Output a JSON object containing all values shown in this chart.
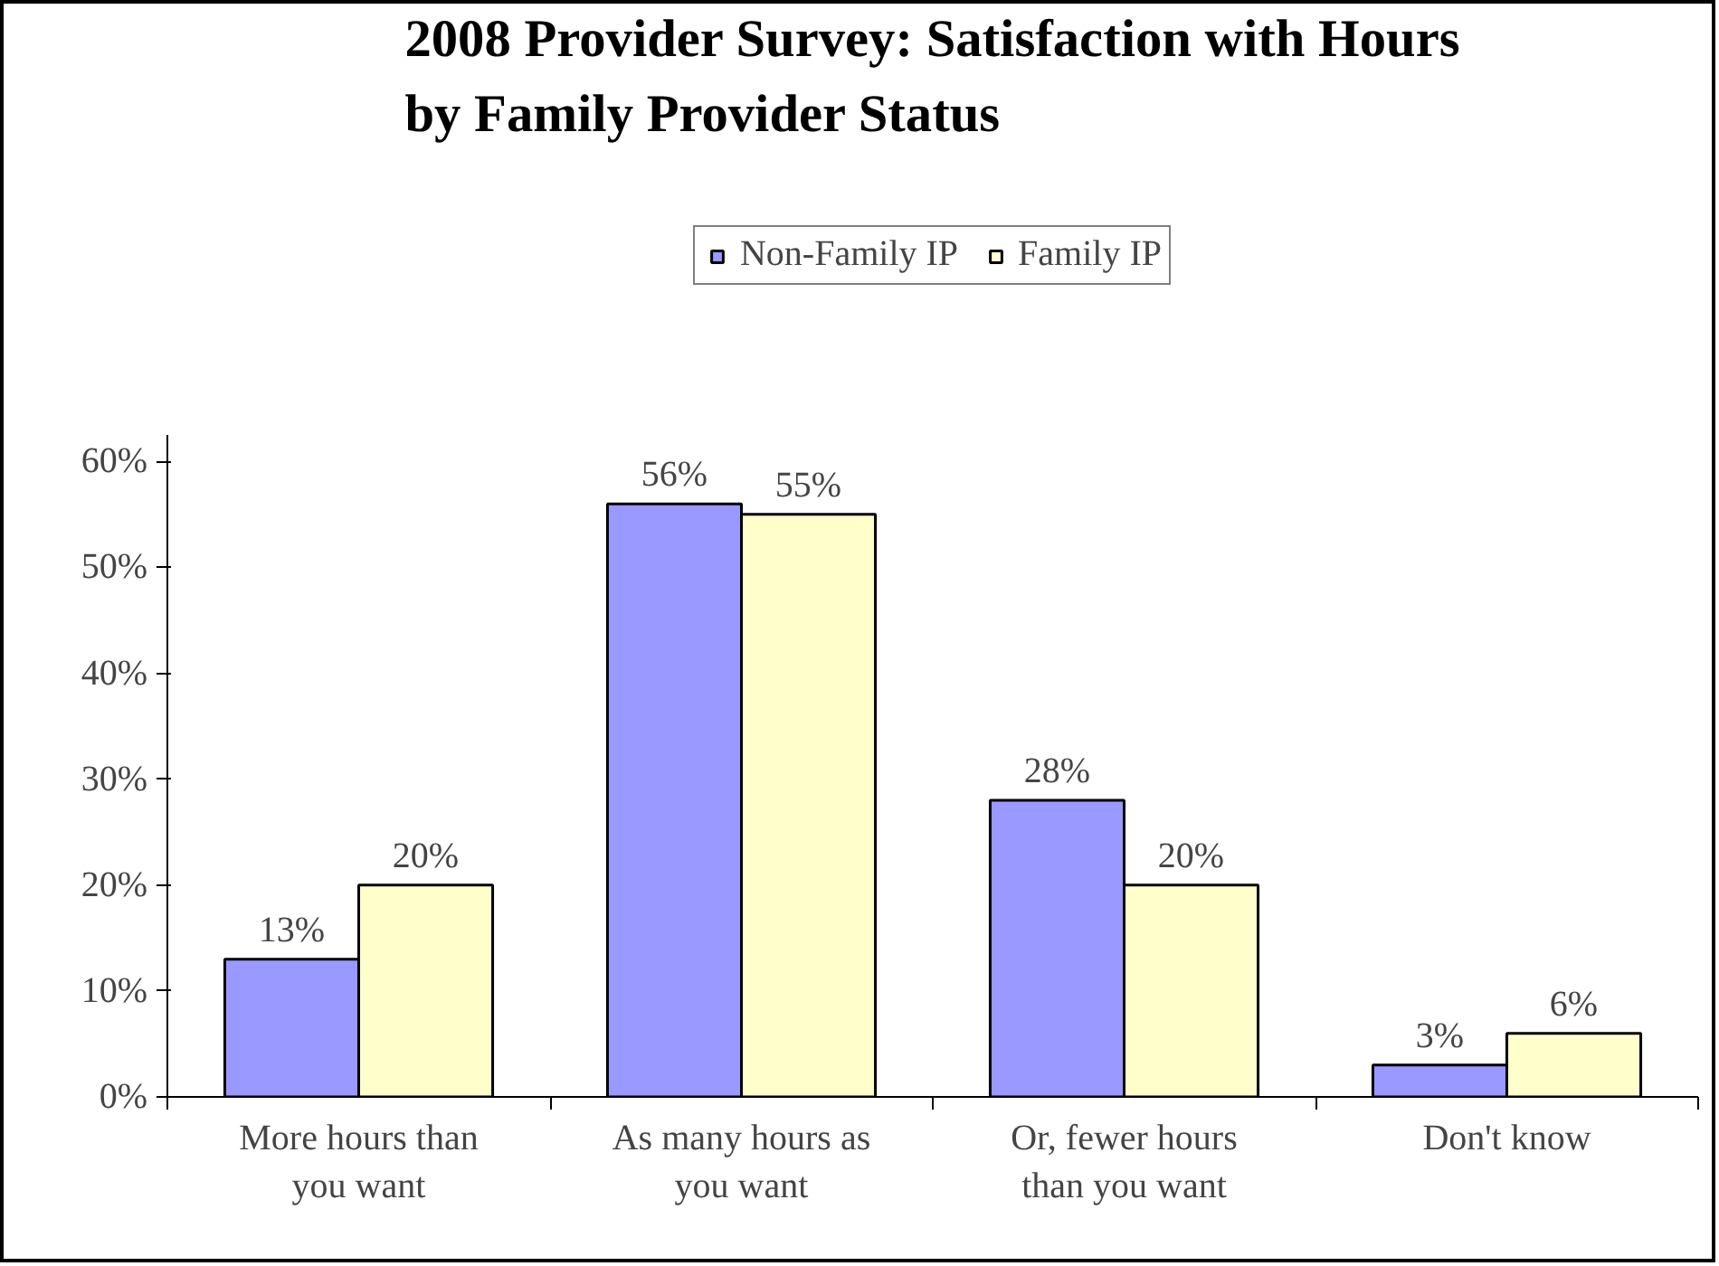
{
  "chart_data": {
    "type": "bar",
    "title": "2008 Provider Survey: Satisfaction with Hours\nby Family Provider Status",
    "categories": [
      "More hours than\nyou want",
      "As many hours as\nyou want",
      "Or, fewer hours\nthan you want",
      "Don't know"
    ],
    "series": [
      {
        "name": "Non-Family IP",
        "color": "#9999ff",
        "values": [
          13,
          56,
          28,
          3
        ],
        "value_labels": [
          "13%",
          "56%",
          "28%",
          "3%"
        ]
      },
      {
        "name": "Family IP",
        "color": "#ffffcc",
        "values": [
          20,
          55,
          20,
          6
        ],
        "value_labels": [
          "20%",
          "55%",
          "20%",
          "6%"
        ]
      }
    ],
    "ylim": [
      0,
      62.5
    ],
    "yticks": [
      {
        "value": 0,
        "label": "0%"
      },
      {
        "value": 10,
        "label": "10%"
      },
      {
        "value": 20,
        "label": "20%"
      },
      {
        "value": 30,
        "label": "30%"
      },
      {
        "value": 40,
        "label": "40%"
      },
      {
        "value": 50,
        "label": "50%"
      },
      {
        "value": 60,
        "label": "60%"
      }
    ],
    "grid": false,
    "legend": "top"
  }
}
